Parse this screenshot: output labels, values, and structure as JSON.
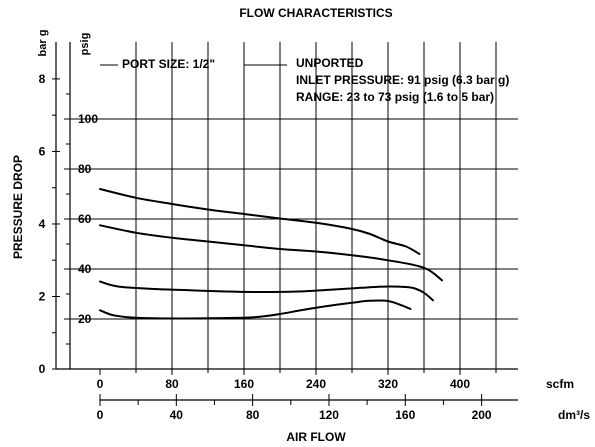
{
  "chart_data": {
    "type": "line",
    "title": "FLOW CHARACTERISTICS",
    "ylabel": "PRESSURE DROP",
    "xlabel": "AIR FLOW",
    "x_units_primary": "scfm",
    "x_units_secondary": "dm³/s",
    "y_units_primary": "psig",
    "y_units_secondary": "bar g",
    "xlim": [
      0,
      450
    ],
    "ylim": [
      0,
      120
    ],
    "grid": true,
    "x_ticks_scfm": [
      "0",
      "80",
      "160",
      "240",
      "320",
      "400"
    ],
    "x_ticks_dm3s": [
      "0",
      "40",
      "80",
      "120",
      "160",
      "200"
    ],
    "y_ticks_psig": [
      "20",
      "40",
      "60",
      "80",
      "100"
    ],
    "y_ticks_bar": [
      "0",
      "2",
      "4",
      "6",
      "8"
    ],
    "notes": {
      "port": "PORT SIZE: 1/2\"",
      "line1": "UNPORTED",
      "line2": "INLET PRESSURE: 91 psig (6.3 bar g)",
      "line3": "RANGE: 23 to 73 psig (1.6 to 5 bar)"
    },
    "series": [
      {
        "x": [
          0,
          40,
          80,
          120,
          160,
          200,
          240,
          280,
          300,
          320,
          340,
          355
        ],
        "y": [
          72,
          68.5,
          66,
          63.8,
          62,
          60.2,
          58.5,
          56,
          54,
          51,
          49,
          46
        ]
      },
      {
        "x": [
          0,
          40,
          80,
          120,
          160,
          200,
          240,
          280,
          320,
          360,
          380
        ],
        "y": [
          57.5,
          54.5,
          52.5,
          51,
          49.5,
          48,
          47,
          45.5,
          43.5,
          40.5,
          35.5
        ]
      },
      {
        "x": [
          0,
          20,
          60,
          100,
          140,
          180,
          220,
          260,
          290,
          320,
          340,
          350,
          360,
          370
        ],
        "y": [
          35,
          33,
          32,
          31.5,
          31,
          30.8,
          31,
          31.8,
          32.5,
          33,
          32.8,
          32.2,
          30.5,
          27.5
        ]
      },
      {
        "x": [
          0,
          15,
          40,
          80,
          120,
          160,
          180,
          200,
          240,
          280,
          300,
          320,
          335,
          345
        ],
        "y": [
          23.5,
          21.5,
          20.5,
          20.2,
          20.3,
          20.5,
          21,
          22,
          24.5,
          26.5,
          27.3,
          27.2,
          25.5,
          24
        ]
      }
    ]
  }
}
